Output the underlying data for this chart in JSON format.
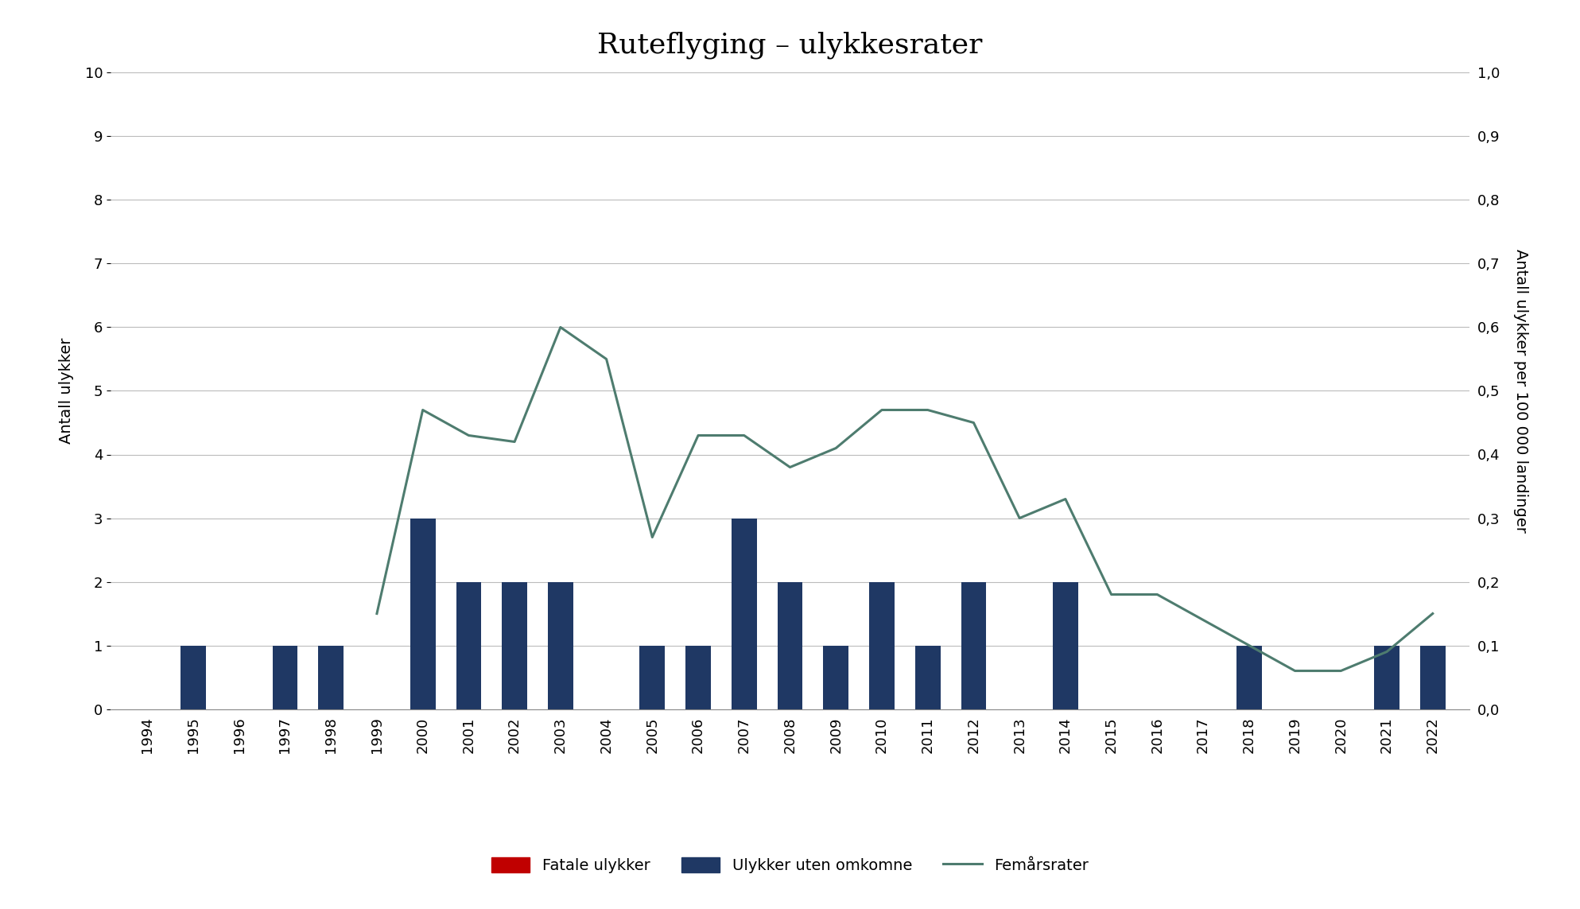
{
  "title": "Ruteflyging – ulykkesrater",
  "years": [
    1994,
    1995,
    1996,
    1997,
    1998,
    1999,
    2000,
    2001,
    2002,
    2003,
    2004,
    2005,
    2006,
    2007,
    2008,
    2009,
    2010,
    2011,
    2012,
    2013,
    2014,
    2015,
    2016,
    2017,
    2018,
    2019,
    2020,
    2021,
    2022
  ],
  "fatal_accidents": [
    0,
    0,
    0,
    0,
    0,
    0,
    0,
    0,
    0,
    0,
    0,
    0,
    0,
    0,
    0,
    0,
    0,
    0,
    0,
    0,
    0,
    0,
    0,
    0,
    0,
    0,
    0,
    0,
    0
  ],
  "non_fatal_accidents": [
    0,
    1,
    0,
    1,
    1,
    0,
    3,
    2,
    2,
    2,
    0,
    1,
    1,
    3,
    2,
    1,
    2,
    1,
    2,
    0,
    2,
    0,
    0,
    0,
    1,
    0,
    0,
    1,
    1
  ],
  "five_year_rates": [
    null,
    null,
    null,
    null,
    null,
    0.15,
    0.47,
    0.43,
    0.42,
    0.6,
    0.55,
    0.27,
    0.43,
    0.43,
    0.38,
    0.41,
    0.47,
    0.47,
    0.45,
    0.3,
    0.33,
    0.18,
    0.18,
    0.14,
    0.1,
    0.06,
    0.06,
    0.09,
    0.15
  ],
  "ylabel_left": "Antall ulykker",
  "ylabel_right": "Antall ulykker per 100 000 landinger",
  "ylim_left": [
    0,
    10
  ],
  "ylim_right": [
    0,
    1.0
  ],
  "yticks_left": [
    0,
    1,
    2,
    3,
    4,
    5,
    6,
    7,
    8,
    9,
    10
  ],
  "yticks_right": [
    0.0,
    0.1,
    0.2,
    0.3,
    0.4,
    0.5,
    0.6,
    0.7,
    0.8,
    0.9,
    1.0
  ],
  "ytick_labels_right": [
    "0,0",
    "0,1",
    "0,2",
    "0,3",
    "0,4",
    "0,5",
    "0,6",
    "0,7",
    "0,8",
    "0,9",
    "1,0"
  ],
  "ytick_labels_left": [
    "0",
    "1",
    "2",
    "3",
    "4",
    "5",
    "6",
    "7",
    "8",
    "9",
    "10"
  ],
  "bar_color_fatal": "#c00000",
  "bar_color_nonfatal": "#1f3864",
  "line_color": "#4e7c6f",
  "background_color": "#ffffff",
  "grid_color": "#bbbbbb",
  "legend_fatal": "Fatale ulykker",
  "legend_nonfatal": "Ulykker uten omkomne",
  "legend_line": "Femårsrater",
  "title_fontsize": 26,
  "axis_label_fontsize": 14,
  "tick_fontsize": 13,
  "legend_fontsize": 14
}
